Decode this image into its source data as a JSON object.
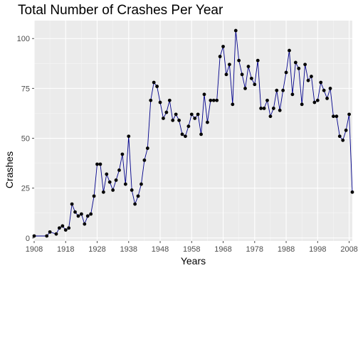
{
  "chart_data": {
    "type": "line",
    "title": "Total Number of Crashes Per Year",
    "xlabel": "Years",
    "ylabel": "Crashes",
    "xlim": [
      1908,
      2009
    ],
    "ylim": [
      -1.5,
      109
    ],
    "x_ticks": [
      1908,
      1918,
      1928,
      1938,
      1948,
      1958,
      1968,
      1978,
      1988,
      1998,
      2008
    ],
    "y_ticks": [
      0,
      25,
      50,
      75,
      100
    ],
    "grid": true,
    "background": "#ebebeb",
    "line_color": "#00008b",
    "point_color": "#000000",
    "x": [
      1908,
      1912,
      1913,
      1915,
      1916,
      1917,
      1918,
      1919,
      1920,
      1921,
      1922,
      1923,
      1924,
      1925,
      1926,
      1927,
      1928,
      1929,
      1930,
      1931,
      1932,
      1933,
      1934,
      1935,
      1936,
      1937,
      1938,
      1939,
      1940,
      1941,
      1942,
      1943,
      1944,
      1945,
      1946,
      1947,
      1948,
      1949,
      1950,
      1951,
      1952,
      1953,
      1954,
      1955,
      1956,
      1957,
      1958,
      1959,
      1960,
      1961,
      1962,
      1963,
      1964,
      1965,
      1966,
      1967,
      1968,
      1969,
      1970,
      1971,
      1972,
      1973,
      1974,
      1975,
      1976,
      1977,
      1978,
      1979,
      1980,
      1981,
      1982,
      1983,
      1984,
      1985,
      1986,
      1987,
      1988,
      1989,
      1990,
      1991,
      1992,
      1993,
      1994,
      1995,
      1996,
      1997,
      1998,
      1999,
      2000,
      2001,
      2002,
      2003,
      2004,
      2005,
      2006,
      2007,
      2008,
      2009
    ],
    "values": [
      1,
      1,
      3,
      2,
      5,
      6,
      4,
      5,
      17,
      13,
      11,
      12,
      7,
      11,
      12,
      21,
      37,
      37,
      23,
      32,
      28,
      24,
      29,
      34,
      42,
      27,
      51,
      24,
      17,
      21,
      27,
      39,
      45,
      69,
      78,
      76,
      68,
      60,
      63,
      69,
      59,
      62,
      59,
      52,
      51,
      56,
      62,
      60,
      62,
      52,
      72,
      58,
      69,
      69,
      69,
      91,
      96,
      82,
      87,
      67,
      104,
      89,
      82,
      75,
      86,
      80,
      77,
      89,
      65,
      65,
      69,
      61,
      65,
      74,
      64,
      74,
      83,
      94,
      72,
      88,
      85,
      67,
      87,
      79,
      81,
      68,
      69,
      78,
      74,
      70,
      75,
      61,
      61,
      51,
      49,
      54,
      62,
      23
    ]
  }
}
